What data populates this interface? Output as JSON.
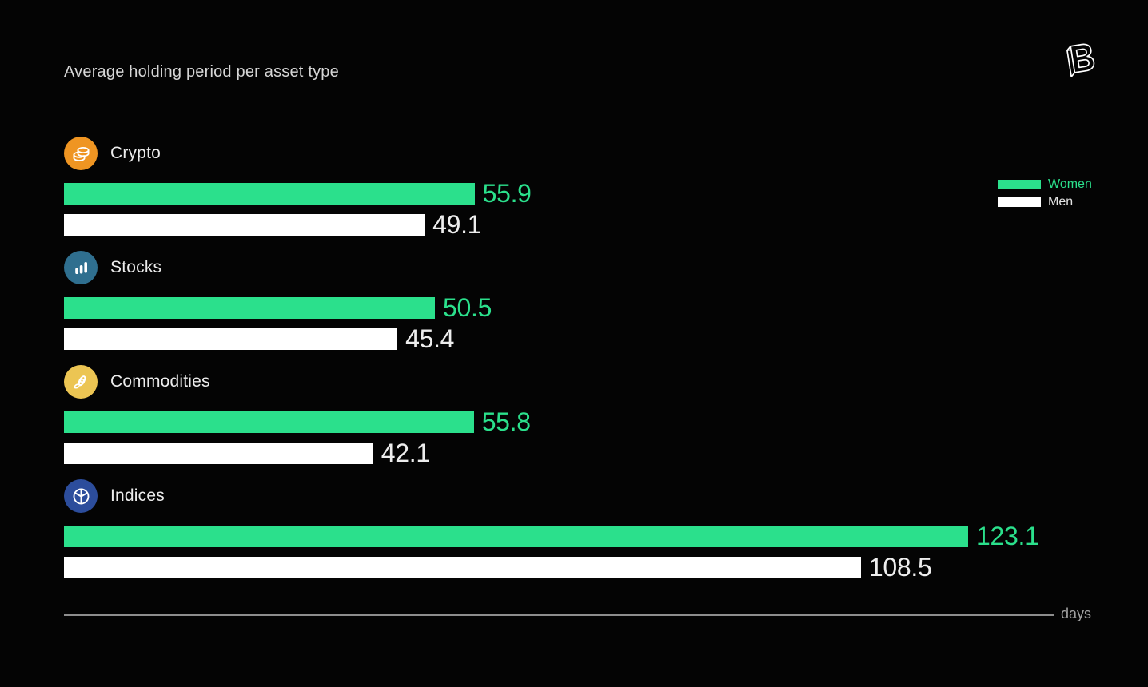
{
  "page": {
    "background": "#040404"
  },
  "header": {
    "title": "Average holding period per asset type",
    "logo_letter": "B"
  },
  "legend": {
    "items": [
      {
        "label": "Women",
        "color": "#2be08c"
      },
      {
        "label": "Men",
        "color": "#ffffff"
      }
    ]
  },
  "axis": {
    "label": "days"
  },
  "chart_data": {
    "type": "bar",
    "orientation": "horizontal",
    "title": "Average holding period per asset type",
    "xlabel": "days",
    "xmax": 123.1,
    "grid": false,
    "legend_position": "right",
    "categories": [
      "Crypto",
      "Stocks",
      "Commodities",
      "Indices"
    ],
    "category_icons": [
      "coins-icon",
      "bar-chart-icon",
      "corn-icon",
      "pie-chart-icon"
    ],
    "icon_colors": [
      "#ef9522",
      "#2f6f8f",
      "#ecc553",
      "#2c4d9c"
    ],
    "series": [
      {
        "name": "Women",
        "color": "#2be08c",
        "values": [
          55.9,
          50.5,
          55.8,
          123.1
        ]
      },
      {
        "name": "Men",
        "color": "#ffffff",
        "values": [
          49.1,
          45.4,
          42.1,
          108.5
        ]
      }
    ],
    "value_label_color_men": "#ededed"
  }
}
